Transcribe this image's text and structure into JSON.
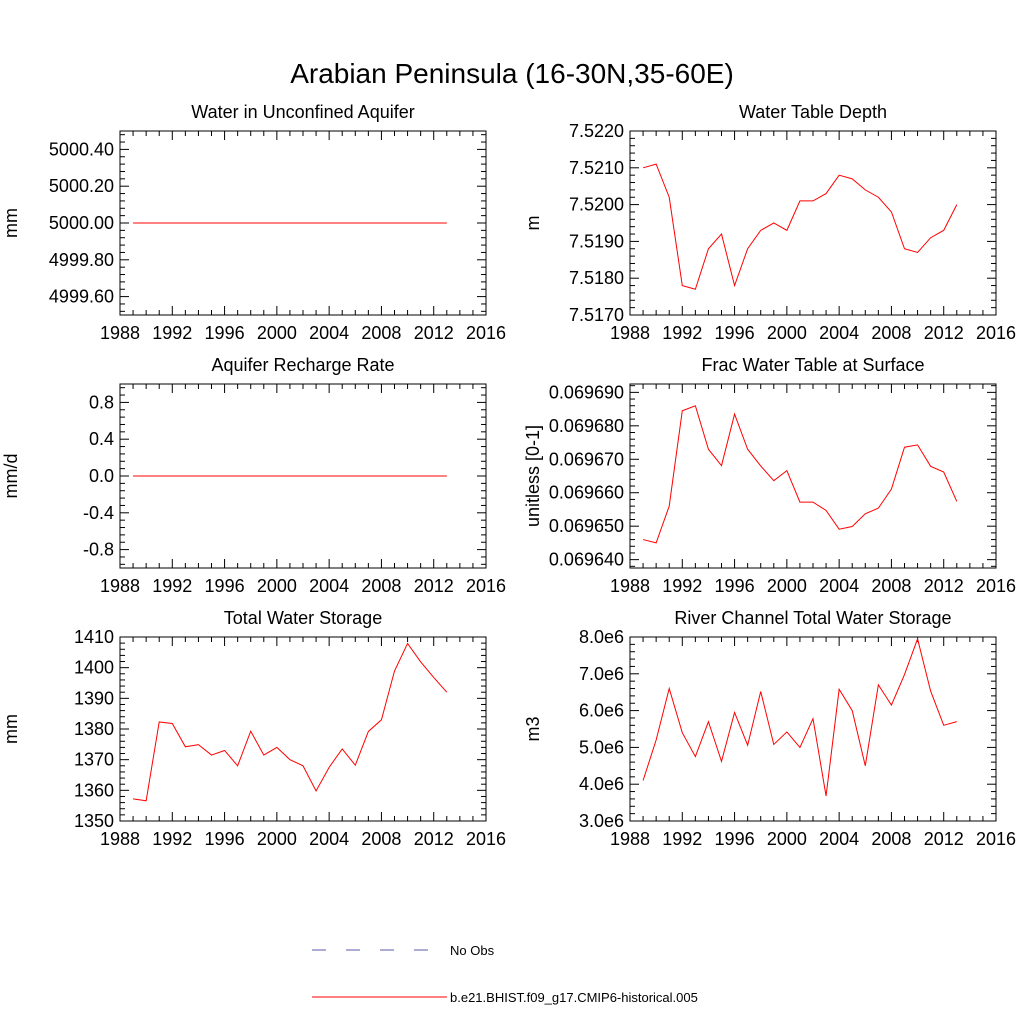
{
  "figure": {
    "title": "Arabian Peninsula (16-30N,35-60E)",
    "colors": {
      "model": "#ff0000",
      "obs": "#5a5aa8",
      "axis": "#000000"
    }
  },
  "legend": {
    "entries": [
      {
        "label": "No Obs",
        "style": "dashed",
        "color": "#5a5aa8"
      },
      {
        "label": "b.e21.BHIST.f09_g17.CMIP6-historical.005",
        "style": "solid",
        "color": "#ff0000"
      }
    ]
  },
  "chart_data": [
    {
      "type": "line",
      "title": "Water in Unconfined Aquifer",
      "xlabel": "",
      "ylabel": "mm",
      "xlim": [
        1988,
        2016
      ],
      "ylim": [
        4999.5,
        5000.5
      ],
      "xticks": [
        1988,
        1992,
        1996,
        2000,
        2004,
        2008,
        2012,
        2016
      ],
      "yticks": [
        4999.6,
        4999.8,
        5000.0,
        5000.2,
        5000.4
      ],
      "ytick_labels": [
        "4999.60",
        "4999.80",
        "5000.00",
        "5000.20",
        "5000.40"
      ],
      "grid": false,
      "series": [
        {
          "name": "b.e21.BHIST.f09_g17.CMIP6-historical.005",
          "x": [
            1989,
            1990,
            1991,
            1992,
            1993,
            1994,
            1995,
            1996,
            1997,
            1998,
            1999,
            2000,
            2001,
            2002,
            2003,
            2004,
            2005,
            2006,
            2007,
            2008,
            2009,
            2010,
            2011,
            2012,
            2013
          ],
          "values": [
            5000.0,
            5000.0,
            5000.0,
            5000.0,
            5000.0,
            5000.0,
            5000.0,
            5000.0,
            5000.0,
            5000.0,
            5000.0,
            5000.0,
            5000.0,
            5000.0,
            5000.0,
            5000.0,
            5000.0,
            5000.0,
            5000.0,
            5000.0,
            5000.0,
            5000.0,
            5000.0,
            5000.0,
            5000.0
          ]
        }
      ]
    },
    {
      "type": "line",
      "title": "Water Table Depth",
      "xlabel": "",
      "ylabel": "m",
      "xlim": [
        1988,
        2016
      ],
      "ylim": [
        7.517,
        7.522
      ],
      "xticks": [
        1988,
        1992,
        1996,
        2000,
        2004,
        2008,
        2012,
        2016
      ],
      "yticks": [
        7.517,
        7.518,
        7.519,
        7.52,
        7.521,
        7.522
      ],
      "ytick_labels": [
        "7.5170",
        "7.5180",
        "7.5190",
        "7.5200",
        "7.5210",
        "7.5220"
      ],
      "grid": false,
      "series": [
        {
          "name": "b.e21.BHIST.f09_g17.CMIP6-historical.005",
          "x": [
            1989,
            1990,
            1991,
            1992,
            1993,
            1994,
            1995,
            1996,
            1997,
            1998,
            1999,
            2000,
            2001,
            2002,
            2003,
            2004,
            2005,
            2006,
            2007,
            2008,
            2009,
            2010,
            2011,
            2012,
            2013
          ],
          "values": [
            7.521,
            7.5211,
            7.5202,
            7.5178,
            7.5177,
            7.5188,
            7.5192,
            7.5178,
            7.5188,
            7.5193,
            7.5195,
            7.5193,
            7.5201,
            7.5201,
            7.5203,
            7.5208,
            7.5207,
            7.5204,
            7.5202,
            7.5198,
            7.5188,
            7.5187,
            7.5191,
            7.5193,
            7.52
          ]
        }
      ]
    },
    {
      "type": "line",
      "title": "Aquifer Recharge Rate",
      "xlabel": "",
      "ylabel": "mm/d",
      "xlim": [
        1988,
        2016
      ],
      "ylim": [
        -1.0,
        1.0
      ],
      "xticks": [
        1988,
        1992,
        1996,
        2000,
        2004,
        2008,
        2012,
        2016
      ],
      "yticks": [
        -0.8,
        -0.4,
        0.0,
        0.4,
        0.8
      ],
      "ytick_labels": [
        "-0.8",
        "-0.4",
        "0.0",
        "0.4",
        "0.8"
      ],
      "grid": false,
      "series": [
        {
          "name": "b.e21.BHIST.f09_g17.CMIP6-historical.005",
          "x": [
            1989,
            1990,
            1991,
            1992,
            1993,
            1994,
            1995,
            1996,
            1997,
            1998,
            1999,
            2000,
            2001,
            2002,
            2003,
            2004,
            2005,
            2006,
            2007,
            2008,
            2009,
            2010,
            2011,
            2012,
            2013
          ],
          "values": [
            0.0,
            0.0,
            0.0,
            0.0,
            0.0,
            0.0,
            0.0,
            0.0,
            0.0,
            0.0,
            0.0,
            0.0,
            0.0,
            0.0,
            0.0,
            0.0,
            0.0,
            0.0,
            0.0,
            0.0,
            0.0,
            0.0,
            0.0,
            0.0,
            0.0
          ]
        }
      ]
    },
    {
      "type": "line",
      "title": "Frac Water Table at Surface",
      "xlabel": "",
      "ylabel": "unitless [0-1]",
      "xlim": [
        1988,
        2016
      ],
      "ylim": [
        0.0696375,
        0.0696925
      ],
      "xticks": [
        1988,
        1992,
        1996,
        2000,
        2004,
        2008,
        2012,
        2016
      ],
      "yticks": [
        0.06964,
        0.06965,
        0.06966,
        0.06967,
        0.06968,
        0.06969
      ],
      "ytick_labels": [
        "0.069640",
        "0.069650",
        "0.069660",
        "0.069670",
        "0.069680",
        "0.069690"
      ],
      "grid": false,
      "series": [
        {
          "name": "b.e21.BHIST.f09_g17.CMIP6-historical.005",
          "x": [
            1989,
            1990,
            1991,
            1992,
            1993,
            1994,
            1995,
            1996,
            1997,
            1998,
            1999,
            2000,
            2001,
            2002,
            2003,
            2004,
            2005,
            2006,
            2007,
            2008,
            2009,
            2010,
            2011,
            2012,
            2013
          ],
          "values": [
            0.069646,
            0.069645,
            0.069656,
            0.0696845,
            0.069686,
            0.069673,
            0.0696681,
            0.0696835,
            0.069673,
            0.069668,
            0.0696636,
            0.0696666,
            0.0696572,
            0.0696572,
            0.0696547,
            0.0696491,
            0.0696499,
            0.0696537,
            0.0696554,
            0.0696611,
            0.0696736,
            0.0696743,
            0.0696679,
            0.0696662,
            0.0696574
          ]
        }
      ]
    },
    {
      "type": "line",
      "title": "Total Water Storage",
      "xlabel": "",
      "ylabel": "mm",
      "xlim": [
        1988,
        2016
      ],
      "ylim": [
        1350,
        1410
      ],
      "xticks": [
        1988,
        1992,
        1996,
        2000,
        2004,
        2008,
        2012,
        2016
      ],
      "yticks": [
        1350,
        1360,
        1370,
        1380,
        1390,
        1400,
        1410
      ],
      "ytick_labels": [
        "1350",
        "1360",
        "1370",
        "1380",
        "1390",
        "1400",
        "1410"
      ],
      "grid": false,
      "series": [
        {
          "name": "b.e21.BHIST.f09_g17.CMIP6-historical.005",
          "x": [
            1989,
            1990,
            1991,
            1992,
            1993,
            1994,
            1995,
            1996,
            1997,
            1998,
            1999,
            2000,
            2001,
            2002,
            2003,
            2004,
            2005,
            2006,
            2007,
            2008,
            2009,
            2010,
            2011,
            2012,
            2013
          ],
          "values": [
            1357.2,
            1356.6,
            1382.3,
            1381.8,
            1374.2,
            1374.9,
            1371.5,
            1373.0,
            1368.0,
            1379.3,
            1371.5,
            1374.0,
            1370.0,
            1368.0,
            1359.8,
            1367.5,
            1373.5,
            1368.2,
            1379.2,
            1383.0,
            1398.9,
            1407.9,
            1401.9,
            1396.8,
            1392.0
          ]
        }
      ]
    },
    {
      "type": "line",
      "title": "River Channel Total Water Storage",
      "xlabel": "",
      "ylabel": "m3",
      "xlim": [
        1988,
        2016
      ],
      "ylim": [
        3000000,
        8000000
      ],
      "xticks": [
        1988,
        1992,
        1996,
        2000,
        2004,
        2008,
        2012,
        2016
      ],
      "yticks": [
        3000000,
        4000000,
        5000000,
        6000000,
        7000000,
        8000000
      ],
      "ytick_labels": [
        "3.0e6",
        "4.0e6",
        "5.0e6",
        "6.0e6",
        "7.0e6",
        "8.0e6"
      ],
      "grid": false,
      "series": [
        {
          "name": "b.e21.BHIST.f09_g17.CMIP6-historical.005",
          "x": [
            1989,
            1990,
            1991,
            1992,
            1993,
            1994,
            1995,
            1996,
            1997,
            1998,
            1999,
            2000,
            2001,
            2002,
            2003,
            2004,
            2005,
            2006,
            2007,
            2008,
            2009,
            2010,
            2011,
            2012,
            2013
          ],
          "values": [
            4100000,
            5200000,
            6600000,
            5400000,
            4750000,
            5700000,
            4620000,
            5950000,
            5060000,
            6520000,
            5080000,
            5420000,
            5000000,
            5780000,
            3680000,
            6580000,
            6000000,
            4500000,
            6700000,
            6150000,
            6980000,
            7950000,
            6530000,
            5600000,
            5700000
          ]
        }
      ]
    }
  ]
}
